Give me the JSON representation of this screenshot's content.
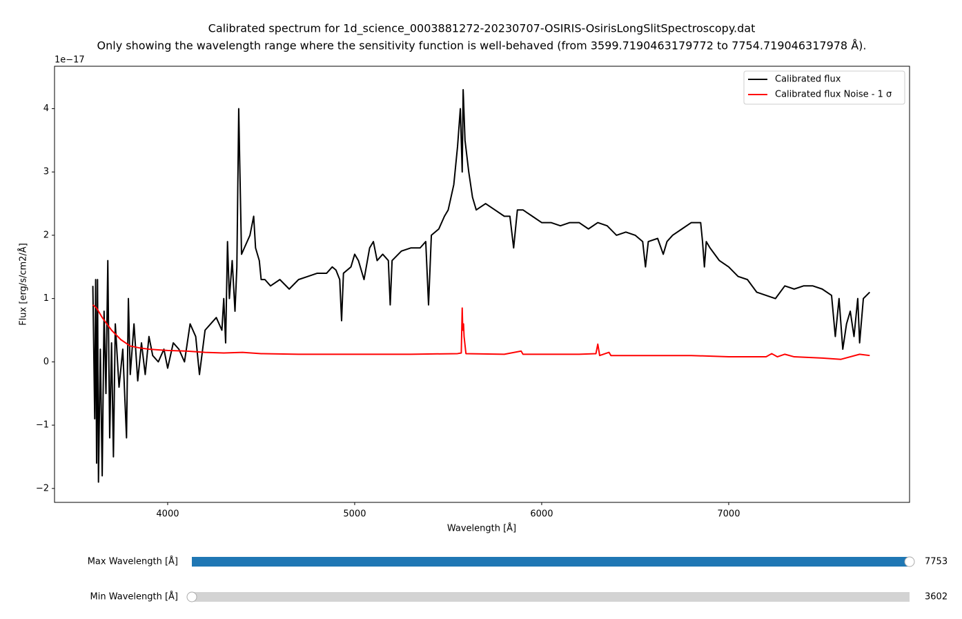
{
  "chart_data": {
    "type": "line",
    "title": "Calibrated spectrum for 1d_science_0003881272-20230707-OSIRIS-OsirisLongSlitSpectroscopy.dat",
    "subtitle": "Only showing the wavelength range where the sensitivity function is well-behaved (from 3599.7190463179772 to 7754.719046317978 Å).",
    "x_label": "Wavelength [Å]",
    "y_label": "Flux [erg/s/cm2/Å]",
    "y_offset_label": "1e−17",
    "xlim": [
      3395,
      7967
    ],
    "ylim": [
      -2.22,
      4.67
    ],
    "xticks": [
      4000,
      5000,
      6000,
      7000
    ],
    "yticks": [
      {
        "value": -2,
        "label": "−2"
      },
      {
        "value": -1,
        "label": "−1"
      },
      0,
      1,
      2,
      3,
      4
    ],
    "legend": "upper right",
    "series": [
      {
        "name": "Calibrated flux",
        "color": "#000000",
        "x": [
          3600,
          3610,
          3615,
          3620,
          3625,
          3630,
          3640,
          3650,
          3660,
          3670,
          3680,
          3690,
          3700,
          3710,
          3720,
          3740,
          3760,
          3780,
          3790,
          3800,
          3820,
          3840,
          3860,
          3880,
          3900,
          3920,
          3950,
          3980,
          4000,
          4030,
          4060,
          4090,
          4120,
          4150,
          4170,
          4200,
          4230,
          4260,
          4290,
          4300,
          4310,
          4320,
          4330,
          4345,
          4360,
          4370,
          4380,
          4385,
          4395,
          4410,
          4440,
          4460,
          4470,
          4490,
          4500,
          4520,
          4550,
          4600,
          4650,
          4700,
          4750,
          4800,
          4850,
          4880,
          4900,
          4920,
          4930,
          4940,
          4980,
          5000,
          5020,
          5050,
          5080,
          5100,
          5120,
          5150,
          5180,
          5190,
          5200,
          5250,
          5300,
          5350,
          5380,
          5395,
          5410,
          5450,
          5480,
          5500,
          5530,
          5550,
          5565,
          5575,
          5580,
          5590,
          5610,
          5630,
          5650,
          5700,
          5750,
          5800,
          5830,
          5850,
          5870,
          5900,
          5950,
          6000,
          6050,
          6100,
          6150,
          6200,
          6250,
          6300,
          6350,
          6400,
          6450,
          6500,
          6540,
          6555,
          6570,
          6620,
          6650,
          6670,
          6700,
          6750,
          6800,
          6850,
          6860,
          6870,
          6880,
          6900,
          6950,
          7000,
          7050,
          7100,
          7150,
          7200,
          7250,
          7300,
          7350,
          7400,
          7450,
          7500,
          7550,
          7570,
          7590,
          7610,
          7630,
          7650,
          7670,
          7690,
          7700,
          7720,
          7754
        ],
        "values": [
          1.2,
          -0.9,
          1.3,
          -1.6,
          1.3,
          -1.9,
          0.2,
          -1.8,
          0.8,
          -0.5,
          1.6,
          -1.2,
          0.3,
          -1.5,
          0.6,
          -0.4,
          0.2,
          -1.2,
          1.0,
          -0.2,
          0.6,
          -0.3,
          0.3,
          -0.2,
          0.4,
          0.1,
          0.0,
          0.2,
          -0.1,
          0.3,
          0.2,
          0.0,
          0.6,
          0.4,
          -0.2,
          0.5,
          0.6,
          0.7,
          0.5,
          1.0,
          0.3,
          1.9,
          1.0,
          1.6,
          0.8,
          1.5,
          4.0,
          3.2,
          1.7,
          1.8,
          2.0,
          2.3,
          1.8,
          1.6,
          1.3,
          1.3,
          1.2,
          1.3,
          1.15,
          1.3,
          1.35,
          1.4,
          1.4,
          1.5,
          1.45,
          1.3,
          0.65,
          1.4,
          1.5,
          1.7,
          1.6,
          1.3,
          1.8,
          1.9,
          1.6,
          1.7,
          1.6,
          0.9,
          1.6,
          1.75,
          1.8,
          1.8,
          1.9,
          0.9,
          2.0,
          2.1,
          2.3,
          2.4,
          2.8,
          3.4,
          4.0,
          3.0,
          4.3,
          3.5,
          3.0,
          2.6,
          2.4,
          2.5,
          2.4,
          2.3,
          2.3,
          1.8,
          2.4,
          2.4,
          2.3,
          2.2,
          2.2,
          2.15,
          2.2,
          2.2,
          2.1,
          2.2,
          2.15,
          2.0,
          2.05,
          2.0,
          1.9,
          1.5,
          1.9,
          1.95,
          1.7,
          1.9,
          2.0,
          2.1,
          2.2,
          2.2,
          1.9,
          1.5,
          1.9,
          1.8,
          1.6,
          1.5,
          1.35,
          1.3,
          1.1,
          1.05,
          1.0,
          1.2,
          1.15,
          1.2,
          1.2,
          1.15,
          1.05,
          0.4,
          1.0,
          0.2,
          0.6,
          0.8,
          0.4,
          1.0,
          0.3,
          1.0,
          1.1
        ]
      },
      {
        "name": "Calibrated flux Noise - 1 σ",
        "color": "#ff0000",
        "x": [
          3600,
          3620,
          3650,
          3700,
          3750,
          3800,
          3850,
          3900,
          3950,
          4000,
          4100,
          4200,
          4300,
          4400,
          4500,
          4700,
          5000,
          5300,
          5550,
          5570,
          5575,
          5578,
          5582,
          5585,
          5595,
          5800,
          5890,
          5900,
          6200,
          6290,
          6300,
          6310,
          6360,
          6370,
          6500,
          6800,
          7000,
          7200,
          7230,
          7260,
          7300,
          7350,
          7500,
          7600,
          7700,
          7754
        ],
        "values": [
          0.9,
          0.85,
          0.7,
          0.5,
          0.35,
          0.25,
          0.22,
          0.2,
          0.19,
          0.18,
          0.17,
          0.15,
          0.14,
          0.15,
          0.13,
          0.12,
          0.12,
          0.12,
          0.13,
          0.14,
          0.85,
          0.5,
          0.6,
          0.4,
          0.13,
          0.12,
          0.17,
          0.12,
          0.12,
          0.13,
          0.28,
          0.1,
          0.15,
          0.1,
          0.1,
          0.1,
          0.08,
          0.08,
          0.13,
          0.08,
          0.12,
          0.08,
          0.06,
          0.04,
          0.12,
          0.1
        ]
      }
    ],
    "sliders": [
      {
        "label": "Max Wavelength [Å]",
        "value": 7753,
        "valmin": 3602,
        "valmax": 7753,
        "color": "#1f77b4"
      },
      {
        "label": "Min Wavelength [Å]",
        "value": 3602,
        "valmin": 3602,
        "valmax": 7753,
        "color": "#1f77b4"
      }
    ]
  }
}
